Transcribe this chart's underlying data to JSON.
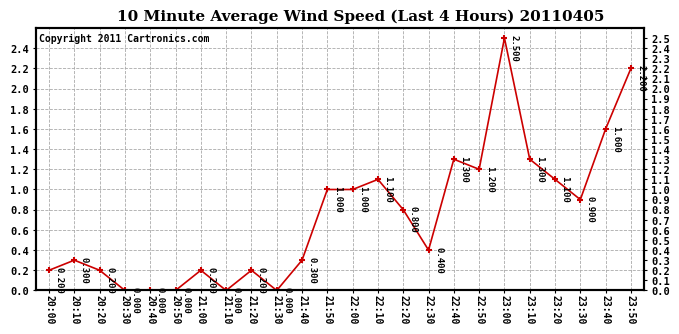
{
  "title": "10 Minute Average Wind Speed (Last 4 Hours) 20110405",
  "copyright": "Copyright 2011 Cartronics.com",
  "x_labels": [
    "20:00",
    "20:10",
    "20:20",
    "20:30",
    "20:40",
    "20:50",
    "21:00",
    "21:10",
    "21:20",
    "21:30",
    "21:40",
    "21:50",
    "22:00",
    "22:10",
    "22:20",
    "22:30",
    "22:40",
    "22:50",
    "23:00",
    "23:10",
    "23:20",
    "23:30",
    "23:40",
    "23:50"
  ],
  "y_values": [
    0.2,
    0.3,
    0.2,
    0.0,
    0.0,
    0.0,
    0.2,
    0.0,
    0.2,
    0.0,
    0.3,
    1.0,
    1.0,
    1.1,
    0.8,
    0.4,
    1.3,
    1.2,
    2.5,
    1.3,
    1.1,
    0.9,
    1.6,
    2.2
  ],
  "line_color": "#cc0000",
  "marker_color": "#cc0000",
  "background_color": "#ffffff",
  "grid_color": "#aaaaaa",
  "title_fontsize": 11,
  "copyright_fontsize": 7,
  "ylim": [
    0.0,
    2.6
  ],
  "yticks_left": [
    0.0,
    0.2,
    0.4,
    0.6,
    0.8,
    1.0,
    1.2,
    1.4,
    1.6,
    1.8,
    2.0,
    2.2,
    2.4
  ],
  "yticks_right": [
    0.0,
    0.1,
    0.2,
    0.3,
    0.4,
    0.5,
    0.6,
    0.7,
    0.8,
    0.9,
    1.0,
    1.1,
    1.2,
    1.3,
    1.4,
    1.5,
    1.6,
    1.7,
    1.8,
    1.9,
    2.0,
    2.1,
    2.2,
    2.3,
    2.4,
    2.5
  ]
}
